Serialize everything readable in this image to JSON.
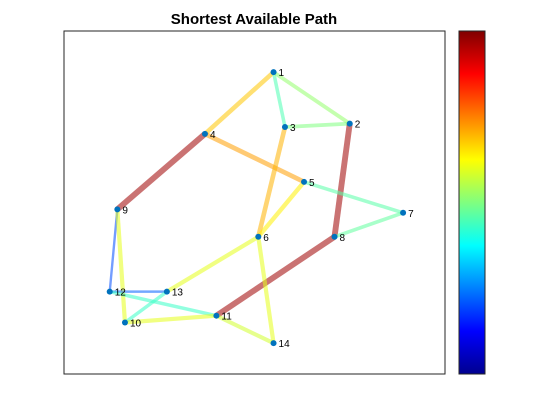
{
  "chart_data": {
    "type": "graph",
    "title": "Shortest Available Path",
    "colormap": "jet",
    "colorbar": {
      "placement": "right",
      "ticks": false
    },
    "nodes": [
      {
        "id": 1,
        "label": "1",
        "x": 0.55,
        "y": 0.88
      },
      {
        "id": 2,
        "label": "2",
        "x": 0.75,
        "y": 0.73
      },
      {
        "id": 3,
        "label": "3",
        "x": 0.58,
        "y": 0.72
      },
      {
        "id": 4,
        "label": "4",
        "x": 0.37,
        "y": 0.7
      },
      {
        "id": 5,
        "label": "5",
        "x": 0.63,
        "y": 0.56
      },
      {
        "id": 6,
        "label": "6",
        "x": 0.51,
        "y": 0.4
      },
      {
        "id": 7,
        "label": "7",
        "x": 0.89,
        "y": 0.47
      },
      {
        "id": 8,
        "label": "8",
        "x": 0.71,
        "y": 0.4
      },
      {
        "id": 9,
        "label": "9",
        "x": 0.14,
        "y": 0.48
      },
      {
        "id": 10,
        "label": "10",
        "x": 0.16,
        "y": 0.15
      },
      {
        "id": 11,
        "label": "11",
        "x": 0.4,
        "y": 0.17
      },
      {
        "id": 12,
        "label": "12",
        "x": 0.12,
        "y": 0.24
      },
      {
        "id": 13,
        "label": "13",
        "x": 0.27,
        "y": 0.24
      },
      {
        "id": 14,
        "label": "14",
        "x": 0.55,
        "y": 0.09
      }
    ],
    "edges": [
      {
        "from": 1,
        "to": 4,
        "level": 0.68
      },
      {
        "from": 1,
        "to": 3,
        "level": 0.45
      },
      {
        "from": 1,
        "to": 2,
        "level": 0.52
      },
      {
        "from": 3,
        "to": 2,
        "level": 0.5
      },
      {
        "from": 2,
        "to": 8,
        "level": 0.97
      },
      {
        "from": 4,
        "to": 9,
        "level": 0.97
      },
      {
        "from": 4,
        "to": 5,
        "level": 0.72
      },
      {
        "from": 3,
        "to": 6,
        "level": 0.7
      },
      {
        "from": 5,
        "to": 6,
        "level": 0.64
      },
      {
        "from": 5,
        "to": 7,
        "level": 0.46
      },
      {
        "from": 7,
        "to": 8,
        "level": 0.47
      },
      {
        "from": 8,
        "to": 11,
        "level": 0.97
      },
      {
        "from": 6,
        "to": 13,
        "level": 0.6
      },
      {
        "from": 6,
        "to": 14,
        "level": 0.6
      },
      {
        "from": 11,
        "to": 14,
        "level": 0.58
      },
      {
        "from": 9,
        "to": 12,
        "level": 0.2
      },
      {
        "from": 9,
        "to": 10,
        "level": 0.6
      },
      {
        "from": 12,
        "to": 13,
        "level": 0.22
      },
      {
        "from": 12,
        "to": 11,
        "level": 0.43
      },
      {
        "from": 13,
        "to": 10,
        "level": 0.43
      },
      {
        "from": 10,
        "to": 11,
        "level": 0.6
      }
    ],
    "node_color": "#0072BD"
  }
}
